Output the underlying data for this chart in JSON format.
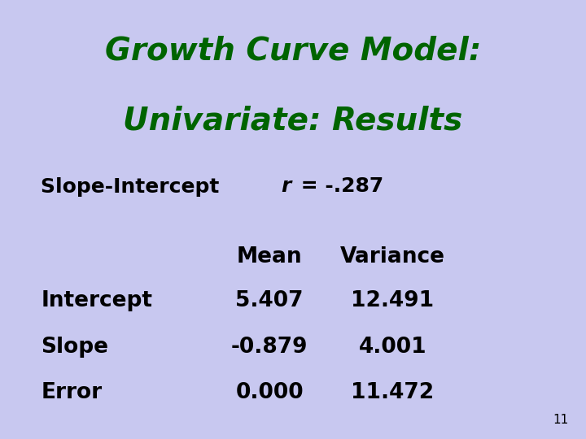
{
  "title_line1": "Growth Curve Model:",
  "title_line2": "Univariate: Results",
  "title_color": "#006400",
  "title_fontsize": 28,
  "bg_color": "#c8c8f0",
  "slope_intercept_label": "Slope-Intercept ",
  "slope_intercept_r": "r",
  "slope_intercept_val": " = -.287",
  "slope_intercept_fontsize": 18,
  "body_color": "#000000",
  "col_header_mean": "Mean",
  "col_header_variance": "Variance",
  "rows": [
    {
      "label": "Intercept",
      "mean": "5.407",
      "variance": "12.491"
    },
    {
      "label": "Slope",
      "mean": "-0.879",
      "variance": "4.001"
    },
    {
      "label": "Error",
      "mean": "0.000",
      "variance": "11.472"
    }
  ],
  "page_number": "11",
  "body_fontsize": 19,
  "header_fontsize": 19,
  "page_num_fontsize": 11
}
